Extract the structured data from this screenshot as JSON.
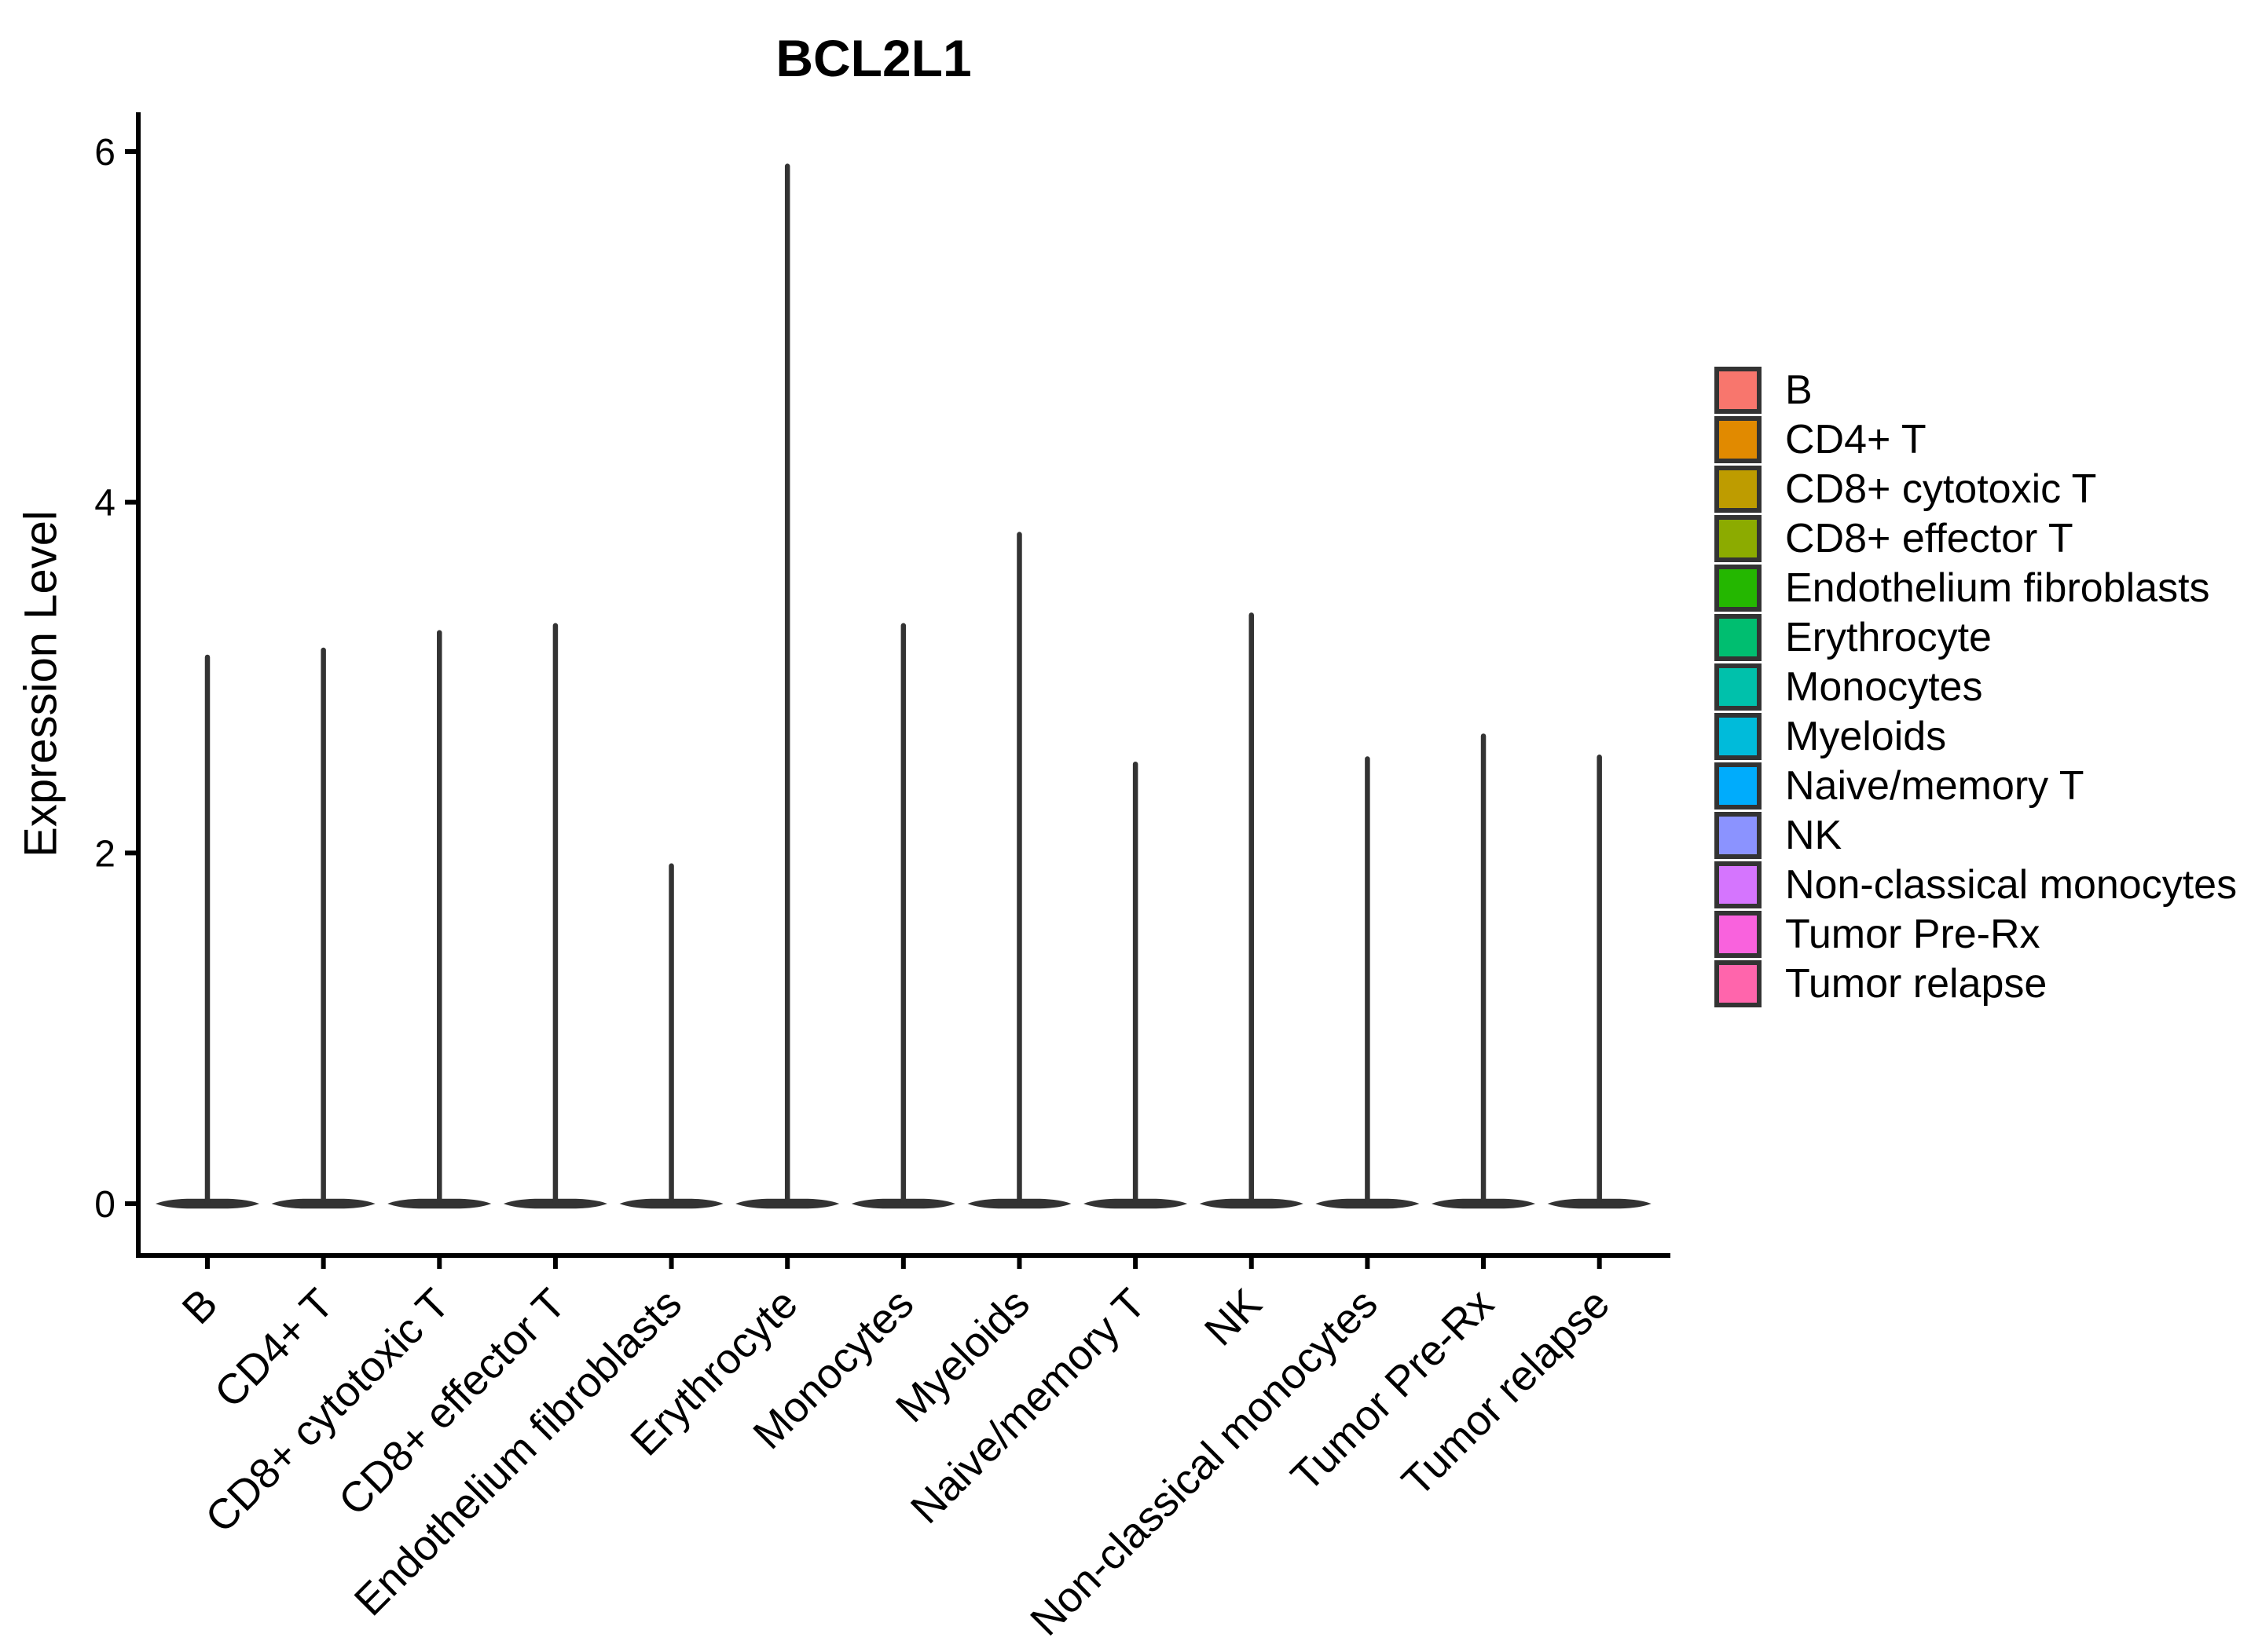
{
  "chart_data": {
    "type": "violin",
    "title": "BCL2L1",
    "ylabel": "Expression Level",
    "xlabel": "",
    "yticks": [
      0,
      2,
      4,
      6
    ],
    "ylim": [
      0,
      6.25
    ],
    "grid": false,
    "legend_position": "right",
    "outline_color": "#333333",
    "violin_shape": "density concentrated at 0 (flat base) with thin tail rising to max_expression",
    "groups": [
      {
        "label": "B",
        "color": "#F8766D",
        "max_expression": 3.13
      },
      {
        "label": "CD4+ T",
        "color": "#E18A00",
        "max_expression": 3.17
      },
      {
        "label": "CD8+ cytotoxic T",
        "color": "#BE9C00",
        "max_expression": 3.27
      },
      {
        "label": "CD8+ effector T",
        "color": "#8CAB00",
        "max_expression": 3.31
      },
      {
        "label": "Endothelium fibroblasts",
        "color": "#24B700",
        "max_expression": 1.94
      },
      {
        "label": "Erythrocyte",
        "color": "#00BE70",
        "max_expression": 5.93
      },
      {
        "label": "Monocytes",
        "color": "#00C1AB",
        "max_expression": 3.31
      },
      {
        "label": "Myeloids",
        "color": "#00BBDA",
        "max_expression": 3.83
      },
      {
        "label": "Naive/memory T",
        "color": "#00ACFC",
        "max_expression": 2.52
      },
      {
        "label": "NK",
        "color": "#8B93FF",
        "max_expression": 3.37
      },
      {
        "label": "Non-classical monocytes",
        "color": "#D575FE",
        "max_expression": 2.55
      },
      {
        "label": "Tumor Pre-Rx",
        "color": "#F962DD",
        "max_expression": 2.68
      },
      {
        "label": "Tumor relapse",
        "color": "#FF65AC",
        "max_expression": 2.56
      }
    ]
  }
}
